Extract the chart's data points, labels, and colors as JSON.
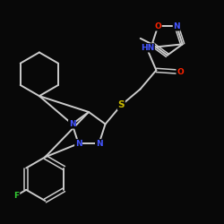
{
  "background_color": "#080808",
  "bond_color": "#cccccc",
  "atom_colors": {
    "N": "#4455ff",
    "O": "#ff2200",
    "S": "#ccbb00",
    "F": "#33cc33",
    "HN": "#4455ff"
  },
  "figsize": [
    2.5,
    2.5
  ],
  "dpi": 100,
  "lw": 1.4,
  "fs": 6.5
}
